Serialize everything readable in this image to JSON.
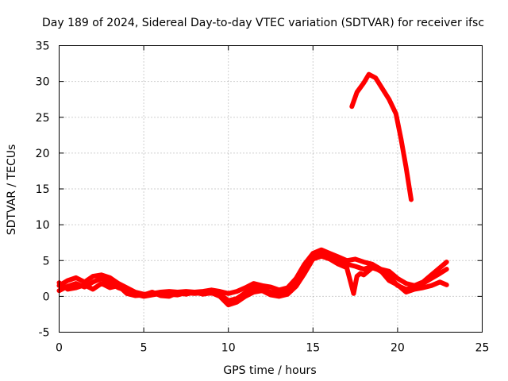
{
  "chart_data": {
    "type": "line",
    "title": "Day 189 of 2024, Sidereal Day-to-day VTEC variation (SDTVAR) for receiver ifsc",
    "xlabel": "GPS time / hours",
    "ylabel": "SDTVAR / TECUs",
    "xlim": [
      0,
      25
    ],
    "ylim": [
      -5,
      35
    ],
    "xticks": [
      0,
      5,
      10,
      15,
      20,
      25
    ],
    "yticks": [
      -5,
      0,
      5,
      10,
      15,
      20,
      25,
      30,
      35
    ],
    "grid": true,
    "legend": "none",
    "color": "#ff0000",
    "series": [
      {
        "name": "track-1",
        "x": [
          0,
          0.5,
          1,
          1.5,
          2,
          2.5,
          3,
          3.5,
          4,
          4.5,
          5,
          5.5,
          6,
          6.5,
          7,
          7.5,
          8,
          8.5,
          9,
          9.5,
          10,
          10.5,
          11,
          11.5,
          12,
          12.5,
          13,
          13.5,
          14,
          14.5,
          15,
          15.5,
          16,
          16.5,
          17,
          17.5,
          18,
          18.5,
          19,
          19.5,
          20,
          20.5,
          21,
          21.5,
          22,
          22.5,
          22.9
        ],
        "y": [
          1.5,
          2.2,
          2.6,
          2.0,
          2.8,
          3.0,
          2.6,
          1.8,
          1.2,
          0.6,
          0.3,
          0.4,
          0.6,
          0.7,
          0.6,
          0.7,
          0.6,
          0.7,
          0.9,
          0.7,
          0.4,
          0.7,
          1.2,
          1.8,
          1.5,
          1.3,
          0.9,
          1.2,
          2.5,
          4.5,
          6.0,
          6.5,
          6.0,
          5.5,
          5.0,
          5.2,
          4.8,
          4.5,
          3.8,
          3.5,
          2.5,
          1.8,
          1.5,
          2.0,
          3.0,
          4.0,
          4.8
        ]
      },
      {
        "name": "track-2",
        "x": [
          0,
          0.5,
          1,
          1.5,
          2,
          2.5,
          3,
          3.5,
          4,
          4.5,
          5,
          5.5,
          6,
          6.5,
          7,
          7.5,
          8,
          8.5,
          9,
          9.5,
          10,
          10.5,
          11,
          11.5,
          12,
          12.5,
          13,
          13.5,
          14,
          14.5,
          15,
          15.5,
          16,
          16.5,
          17,
          17.5,
          18,
          18.5,
          19,
          19.5,
          20,
          20.5,
          21,
          21.5,
          22,
          22.5,
          22.9
        ],
        "y": [
          0.8,
          1.4,
          1.8,
          1.3,
          2.0,
          2.5,
          1.9,
          1.2,
          0.8,
          0.3,
          0.0,
          0.2,
          0.4,
          0.3,
          0.2,
          0.5,
          0.4,
          0.5,
          0.7,
          0.3,
          -0.6,
          -0.3,
          0.5,
          1.2,
          1.0,
          0.6,
          0.4,
          0.8,
          2.0,
          4.0,
          5.6,
          6.0,
          5.6,
          5.0,
          4.5,
          4.2,
          3.8,
          4.2,
          3.5,
          2.8,
          1.5,
          1.0,
          1.2,
          1.8,
          2.5,
          3.2,
          3.8
        ]
      },
      {
        "name": "track-3",
        "x": [
          0,
          0.5,
          1,
          1.5,
          2,
          2.5,
          3,
          3.5,
          4,
          4.5,
          5,
          5.5,
          6,
          6.5,
          7,
          7.5,
          8,
          8.5,
          9,
          9.5,
          10,
          10.5,
          11,
          11.5,
          12,
          12.5,
          13,
          13.5,
          14,
          14.5,
          15,
          15.5,
          16,
          16.5,
          17,
          17.2,
          17.4,
          17.6,
          17.8,
          18,
          18.5,
          19,
          19.5,
          20,
          20.5,
          21,
          21.5,
          22,
          22.5,
          22.9
        ],
        "y": [
          1.9,
          1.0,
          1.2,
          1.6,
          1.0,
          1.8,
          1.2,
          1.5,
          0.4,
          0.1,
          0.2,
          0.6,
          0.1,
          0.0,
          0.5,
          0.3,
          0.6,
          0.3,
          0.5,
          0.0,
          -1.2,
          -0.8,
          0.0,
          0.6,
          0.8,
          0.2,
          0.0,
          0.3,
          1.4,
          3.2,
          5.2,
          5.6,
          5.2,
          4.5,
          4.0,
          2.2,
          0.4,
          2.8,
          3.2,
          3.0,
          4.0,
          3.6,
          2.2,
          1.6,
          0.6,
          1.0,
          1.2,
          1.5,
          2.0,
          1.6
        ]
      },
      {
        "name": "track-4",
        "x": [
          17.3,
          17.6,
          18.0,
          18.3,
          18.7,
          19.1,
          19.5,
          19.9,
          20.2,
          20.5,
          20.8
        ],
        "y": [
          26.5,
          28.5,
          29.8,
          31.0,
          30.5,
          29.0,
          27.5,
          25.5,
          22.0,
          18.0,
          13.5
        ]
      }
    ]
  }
}
